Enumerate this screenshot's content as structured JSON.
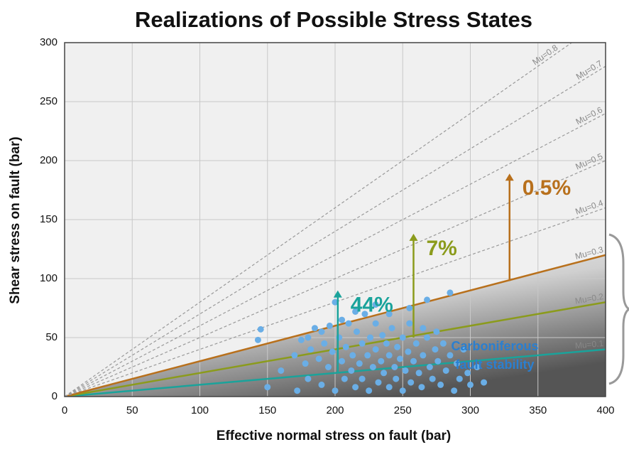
{
  "chart_data": {
    "type": "scatter",
    "title": "Realizations of Possible Stress States",
    "x_label": "Effective normal stress on fault (bar)",
    "y_label": "Shear stress on fault (bar)",
    "xlim": [
      0,
      400
    ],
    "ylim": [
      0,
      300
    ],
    "xticks": [
      0,
      50,
      100,
      150,
      200,
      250,
      300,
      350,
      400
    ],
    "yticks": [
      0,
      50,
      100,
      150,
      200,
      250,
      300
    ],
    "grid": true,
    "series": [
      {
        "color": "#6aaee6",
        "x": [
          145,
          143,
          150,
          160,
          170,
          172,
          175,
          178,
          180,
          182,
          185,
          188,
          190,
          192,
          195,
          196,
          198,
          200,
          200,
          203,
          205,
          207,
          208,
          210,
          212,
          213,
          215,
          216,
          218,
          220,
          220,
          222,
          224,
          225,
          226,
          228,
          230,
          230,
          232,
          234,
          235,
          236,
          238,
          240,
          240,
          242,
          244,
          245,
          246,
          248,
          250,
          250,
          252,
          254,
          255,
          256,
          258,
          260,
          262,
          264,
          265,
          268,
          268,
          270,
          272,
          274,
          276,
          278,
          280,
          282,
          285,
          285,
          288,
          290,
          292,
          295,
          298,
          300,
          305,
          310,
          240,
          255,
          230,
          215,
          205,
          265,
          275,
          190,
          180
        ],
        "values": [
          57,
          48,
          8,
          22,
          35,
          5,
          48,
          28,
          15,
          40,
          58,
          32,
          10,
          45,
          25,
          60,
          38,
          5,
          80,
          50,
          30,
          15,
          42,
          62,
          22,
          35,
          8,
          55,
          28,
          45,
          15,
          70,
          35,
          5,
          50,
          25,
          40,
          62,
          12,
          30,
          52,
          20,
          45,
          8,
          35,
          58,
          25,
          15,
          42,
          32,
          50,
          5,
          22,
          38,
          62,
          12,
          30,
          45,
          20,
          8,
          35,
          82,
          50,
          25,
          15,
          40,
          30,
          10,
          45,
          22,
          88,
          35,
          5,
          28,
          15,
          40,
          20,
          10,
          25,
          12,
          70,
          75,
          78,
          72,
          65,
          58,
          55,
          55,
          50
        ]
      }
    ],
    "friction_lines": [
      {
        "name": "Mu=0.1",
        "mu": 0.1,
        "color": "#1aa39b"
      },
      {
        "name": "Mu=0.2",
        "mu": 0.2,
        "color": "#8b9b1c"
      },
      {
        "name": "Mu=0.3",
        "mu": 0.3,
        "color": "#b8701c"
      },
      {
        "name": "Mu=0.4",
        "mu": 0.4,
        "color": "#a0a0a0"
      },
      {
        "name": "Mu=0.5",
        "mu": 0.5,
        "color": "#a0a0a0"
      },
      {
        "name": "Mu=0.6",
        "mu": 0.6,
        "color": "#a0a0a0"
      },
      {
        "name": "Mu=0.7",
        "mu": 0.7,
        "color": "#a0a0a0"
      },
      {
        "name": "Mu=0.8",
        "mu": 0.8,
        "color": "#a0a0a0"
      }
    ],
    "arrows": [
      {
        "label": "44%",
        "x": 202,
        "y_start": 20,
        "y_end": 90,
        "color": "#1aa39b"
      },
      {
        "label": "7%",
        "x": 258,
        "y_start": 50,
        "y_end": 138,
        "color": "#8b9b1c"
      },
      {
        "label": "0.5%",
        "x": 329,
        "y_start": 98,
        "y_end": 189,
        "color": "#b8701c"
      }
    ],
    "region_label": [
      "Carboniferous",
      "fault stability"
    ]
  }
}
